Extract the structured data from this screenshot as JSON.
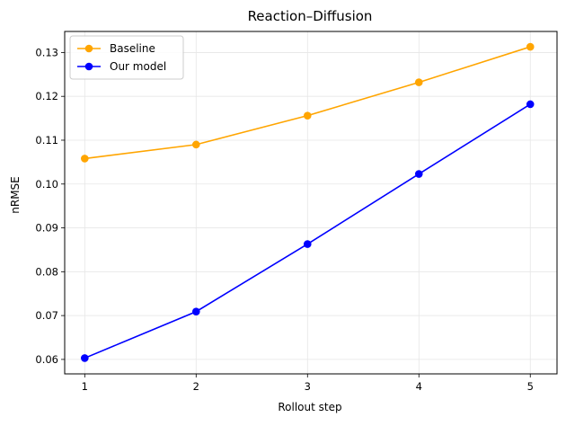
{
  "chart_data": {
    "type": "line",
    "title": "Reaction–Diffusion",
    "xlabel": "Rollout step",
    "ylabel": "nRMSE",
    "x": [
      1,
      2,
      3,
      4,
      5
    ],
    "xlim": [
      0.82,
      5.24
    ],
    "ylim": [
      0.0567,
      0.1348
    ],
    "xticks": [
      "1",
      "2",
      "3",
      "4",
      "5"
    ],
    "yticks": [
      "0.06",
      "0.07",
      "0.08",
      "0.09",
      "0.10",
      "0.11",
      "0.12",
      "0.13"
    ],
    "grid": true,
    "legend_position": "top-left",
    "series": [
      {
        "name": "Baseline",
        "color": "#FFA500",
        "values": [
          0.1058,
          0.109,
          0.1156,
          0.1232,
          0.1313
        ]
      },
      {
        "name": "Our model",
        "color": "#0000FF",
        "values": [
          0.0603,
          0.0709,
          0.0863,
          0.1023,
          0.1182
        ]
      }
    ]
  }
}
